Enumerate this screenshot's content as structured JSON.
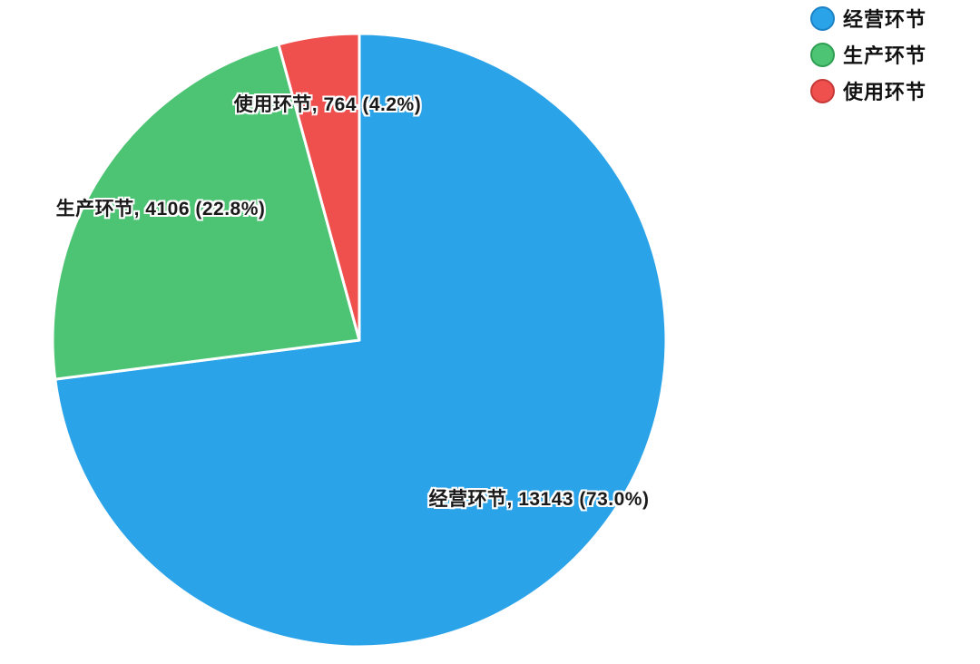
{
  "page": {
    "background": "#ffffff"
  },
  "chart_data": {
    "type": "pie",
    "title": "",
    "categories": [
      "经营环节",
      "生产环节",
      "使用环节"
    ],
    "values": [
      13143,
      4106,
      764
    ],
    "percent_labels": [
      "73.0%",
      "22.8%",
      "4.2%"
    ],
    "slice_labels": [
      "经营环节, 13143 (73.0%)",
      "生产环节, 4106 (22.8%)",
      "使用环节, 764 (4.2%)"
    ],
    "colors": [
      "#2BA3E8",
      "#4DC473",
      "#EF4F4D"
    ],
    "marker_border_colors": [
      "#1B82C6",
      "#2E9E53",
      "#C53937"
    ],
    "slice_gap_color": "#ffffff",
    "start_angle_deg": 0,
    "direction": "clockwise",
    "label_color": "#1a1a1a",
    "label_halo_color": "#ffffff",
    "legend": {
      "position": "top-right",
      "items": [
        {
          "label": "经营环节"
        },
        {
          "label": "生产环节"
        },
        {
          "label": "使用环节"
        }
      ]
    }
  }
}
